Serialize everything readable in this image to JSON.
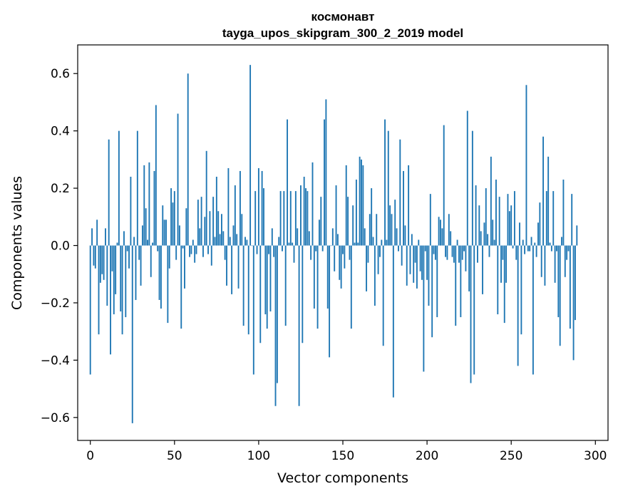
{
  "chart_data": {
    "type": "bar",
    "title": "космонавт",
    "subtitle": "tayga_upos_skipgram_300_2_2019 model",
    "xlabel": "Vector components",
    "ylabel": "Components values",
    "xlim": [
      -7.5,
      307.5
    ],
    "ylim": [
      -0.68,
      0.7
    ],
    "xticks": [
      0,
      50,
      100,
      150,
      200,
      250,
      300
    ],
    "yticks": [
      -0.6,
      -0.4,
      -0.2,
      0.0,
      0.2,
      0.4,
      0.6
    ],
    "xtick_labels": [
      "0",
      "50",
      "100",
      "150",
      "200",
      "250",
      "300"
    ],
    "ytick_labels": [
      "−0.6",
      "−0.4",
      "−0.2",
      "0.0",
      "0.2",
      "0.4",
      "0.6"
    ],
    "bar_color": "#1f77b4",
    "x_start": 0,
    "values": [
      -0.45,
      0.06,
      -0.07,
      -0.08,
      0.09,
      -0.31,
      -0.13,
      -0.1,
      -0.12,
      0.06,
      -0.21,
      0.37,
      -0.38,
      -0.09,
      -0.24,
      -0.17,
      0.01,
      0.4,
      -0.23,
      -0.31,
      0.05,
      -0.25,
      -0.02,
      -0.08,
      0.24,
      -0.62,
      0.03,
      -0.19,
      0.4,
      -0.05,
      -0.14,
      0.07,
      0.28,
      0.13,
      0.02,
      0.29,
      -0.11,
      0.01,
      0.26,
      0.49,
      -0.02,
      -0.19,
      -0.22,
      0.14,
      0.09,
      0.09,
      -0.27,
      -0.08,
      0.2,
      0.15,
      0.19,
      -0.05,
      0.46,
      0.07,
      -0.29,
      -0.01,
      -0.15,
      0.13,
      0.6,
      -0.04,
      -0.03,
      0.02,
      -0.06,
      -0.03,
      0.16,
      0.06,
      0.17,
      -0.04,
      0.1,
      0.33,
      -0.03,
      0.12,
      -0.07,
      0.17,
      0.03,
      0.24,
      0.12,
      0.04,
      0.11,
      0.05,
      -0.05,
      -0.14,
      0.27,
      0.03,
      -0.17,
      0.07,
      0.21,
      0.04,
      -0.15,
      0.26,
      0.11,
      -0.28,
      0.03,
      0.02,
      -0.31,
      0.63,
      0.0,
      -0.45,
      0.19,
      -0.03,
      0.27,
      -0.34,
      0.26,
      0.2,
      -0.24,
      -0.29,
      -0.03,
      -0.23,
      0.06,
      -0.04,
      -0.56,
      -0.48,
      0.03,
      0.19,
      -0.02,
      0.19,
      -0.28,
      0.44,
      0.01,
      0.19,
      0.01,
      -0.06,
      0.19,
      0.06,
      -0.56,
      0.21,
      -0.34,
      0.24,
      0.2,
      0.19,
      0.05,
      -0.05,
      0.29,
      -0.22,
      -0.02,
      -0.29,
      0.09,
      0.17,
      -0.02,
      0.44,
      0.51,
      -0.22,
      -0.39,
      0.0,
      0.06,
      -0.09,
      0.21,
      0.04,
      -0.12,
      -0.15,
      -0.03,
      -0.08,
      0.28,
      0.17,
      -0.05,
      -0.29,
      0.14,
      0.01,
      0.23,
      0.01,
      0.31,
      0.3,
      0.28,
      0.06,
      -0.16,
      -0.06,
      0.11,
      0.2,
      0.03,
      -0.21,
      0.11,
      -0.1,
      -0.04,
      0.02,
      -0.35,
      0.44,
      0.02,
      0.4,
      0.14,
      0.11,
      -0.53,
      0.16,
      0.06,
      -0.02,
      0.37,
      -0.07,
      0.26,
      0.07,
      -0.14,
      0.28,
      -0.1,
      0.04,
      -0.13,
      -0.06,
      -0.15,
      0.02,
      -0.09,
      -0.12,
      -0.44,
      -0.02,
      -0.12,
      -0.21,
      0.18,
      -0.32,
      -0.03,
      -0.05,
      -0.25,
      0.1,
      0.09,
      0.06,
      0.42,
      -0.04,
      -0.05,
      0.11,
      0.05,
      -0.04,
      -0.06,
      -0.28,
      0.02,
      -0.06,
      -0.25,
      -0.05,
      -0.02,
      -0.09,
      0.47,
      -0.16,
      -0.48,
      0.4,
      -0.45,
      0.21,
      -0.06,
      0.14,
      0.05,
      -0.17,
      0.08,
      0.2,
      0.04,
      -0.04,
      0.31,
      0.09,
      0.02,
      0.23,
      -0.24,
      0.17,
      -0.13,
      -0.05,
      -0.27,
      -0.13,
      0.18,
      0.12,
      0.14,
      -0.01,
      0.19,
      -0.05,
      -0.42,
      0.08,
      -0.31,
      0.02,
      -0.03,
      0.56,
      -0.02,
      -0.02,
      0.03,
      -0.45,
      0.01,
      -0.04,
      0.08,
      0.15,
      -0.11,
      0.38,
      -0.14,
      0.19,
      0.31,
      0.01,
      -0.02,
      0.19,
      -0.13,
      -0.02,
      -0.25,
      -0.35,
      0.03,
      0.23,
      -0.11,
      -0.05,
      -0.02,
      -0.29,
      0.18,
      -0.4,
      -0.26,
      0.07
    ]
  }
}
